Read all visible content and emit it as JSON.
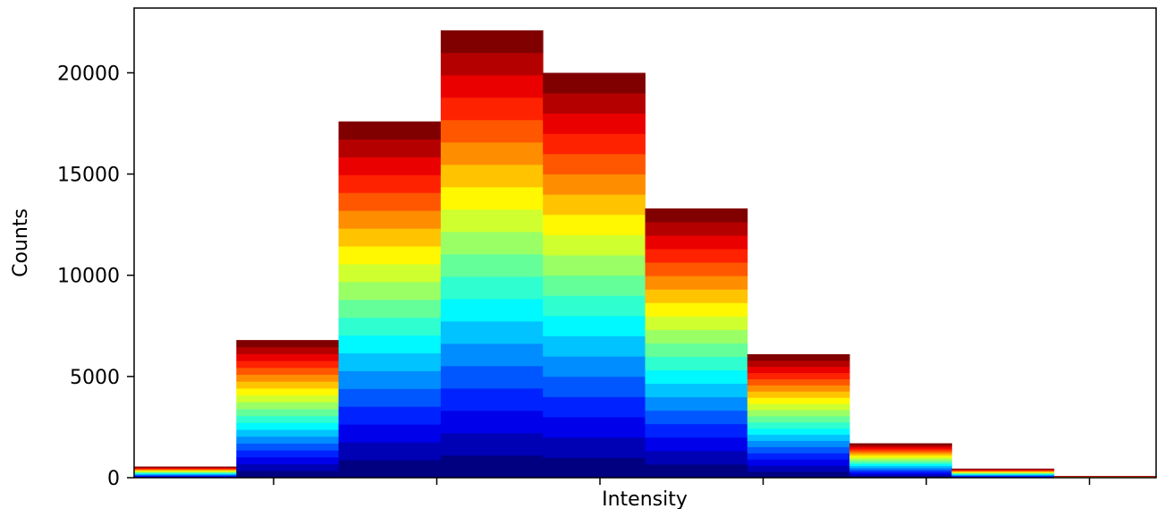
{
  "chart_data": {
    "type": "bar",
    "stacked": true,
    "colormap": "jet",
    "title": "",
    "xlabel": "Intensity",
    "ylabel": "Counts",
    "ylim": [
      0,
      23200
    ],
    "yticks": [
      0,
      5000,
      10000,
      15000,
      20000
    ],
    "ytick_labels": [
      "0",
      "5000",
      "10000",
      "15000",
      "20000"
    ],
    "x_tick_count": 6,
    "bins": 10,
    "layers_per_bin": 20,
    "totals": [
      550,
      6800,
      17600,
      22100,
      20000,
      13300,
      6100,
      1700,
      450,
      80
    ],
    "grid": false,
    "legend": "none"
  }
}
